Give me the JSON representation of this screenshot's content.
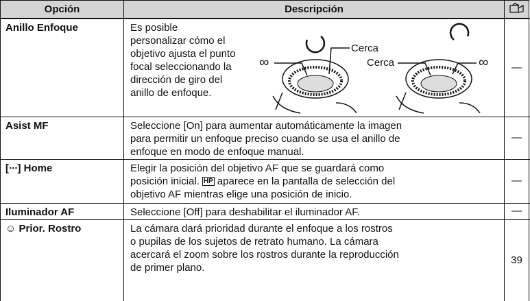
{
  "header": {
    "option": "Opción",
    "description": "Descripción"
  },
  "rows": [
    {
      "option": "Anillo Enfoque",
      "description": [
        [
          "Es posible"
        ],
        [
          "personalizar cómo el"
        ],
        [
          "objetivo ajusta el punto"
        ],
        [
          "focal seleccionando la"
        ],
        [
          "dirección de giro del"
        ],
        [
          "anillo de enfoque."
        ]
      ],
      "diagram_labels": [
        "Cerca",
        "∞",
        "Cerca",
        "∞"
      ],
      "reference": "—"
    },
    {
      "option": "Asist MF",
      "description": [
        [
          "Seleccione [On] para aumentar automáticamente la imagen"
        ],
        [
          "para permitir un enfoque preciso cuando se usa el anillo de"
        ],
        [
          "enfoque en modo de enfoque manual."
        ]
      ],
      "reference": "—"
    },
    {
      "option": "[∙∙∙] Home",
      "description": [
        [
          "Elegir la posición del objetivo AF que se guardará como"
        ],
        [
          "posición inicial.",
          {
            "icon": "HP"
          },
          "aparece en la pantalla de selección del"
        ],
        [
          "objetivo AF mientras elige una posición de inicio."
        ]
      ],
      "reference": "—"
    },
    {
      "option": "Iluminador AF",
      "description": [
        [
          "Seleccione [Off] para deshabilitar el iluminador AF."
        ]
      ],
      "reference": "—"
    },
    {
      "option": "☺ Prior. Rostro",
      "description": [
        [
          "La cámara dará prioridad durante el enfoque a los rostros"
        ],
        [
          "o pupilas de los sujetos de retrato humano. La cámara"
        ],
        [
          "acercará el zoom sobre los rostros durante la reproducción"
        ],
        [
          "de primer plano."
        ]
      ],
      "reference": "39"
    }
  ]
}
